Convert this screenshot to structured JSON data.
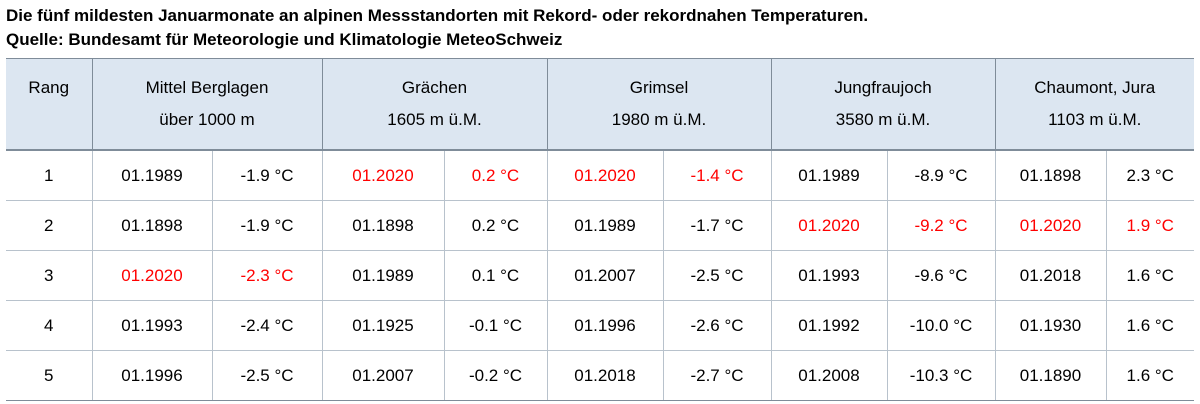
{
  "title": "Die fünf mildesten Januarmonate an alpinen Messstandorten mit Rekord- oder rekordnahen Temperaturen.",
  "source": "Quelle: Bundesamt für Meteorologie und Klimatologie MeteoSchweiz",
  "header": {
    "rank": "Rang",
    "stations": [
      {
        "name": "Mittel Berglagen",
        "altitude": "über 1000 m"
      },
      {
        "name": "Grächen",
        "altitude": "1605 m ü.M."
      },
      {
        "name": "Grimsel",
        "altitude": "1980 m ü.M."
      },
      {
        "name": "Jungfraujoch",
        "altitude": "3580 m ü.M."
      },
      {
        "name": "Chaumont, Jura",
        "altitude": "1103 m ü.M."
      }
    ]
  },
  "highlight_color": "#ff0000",
  "rows": [
    {
      "rank": "1",
      "cells": [
        {
          "date": "01.1989",
          "temp": "-1.9 °C",
          "hl": false
        },
        {
          "date": "01.2020",
          "temp": "0.2 °C",
          "hl": true
        },
        {
          "date": "01.2020",
          "temp": "-1.4 °C",
          "hl": true
        },
        {
          "date": "01.1989",
          "temp": "-8.9 °C",
          "hl": false
        },
        {
          "date": "01.1898",
          "temp": "2.3 °C",
          "hl": false
        }
      ]
    },
    {
      "rank": "2",
      "cells": [
        {
          "date": "01.1898",
          "temp": "-1.9 °C",
          "hl": false
        },
        {
          "date": "01.1898",
          "temp": "0.2 °C",
          "hl": false
        },
        {
          "date": "01.1989",
          "temp": "-1.7 °C",
          "hl": false
        },
        {
          "date": "01.2020",
          "temp": "-9.2 °C",
          "hl": true
        },
        {
          "date": "01.2020",
          "temp": "1.9 °C",
          "hl": true
        }
      ]
    },
    {
      "rank": "3",
      "cells": [
        {
          "date": "01.2020",
          "temp": "-2.3  °C",
          "hl": true
        },
        {
          "date": "01.1989",
          "temp": "0.1 °C",
          "hl": false
        },
        {
          "date": "01.2007",
          "temp": "-2.5 °C",
          "hl": false
        },
        {
          "date": "01.1993",
          "temp": "-9.6 °C",
          "hl": false
        },
        {
          "date": "01.2018",
          "temp": "1.6 °C",
          "hl": false
        }
      ]
    },
    {
      "rank": "4",
      "cells": [
        {
          "date": "01.1993",
          "temp": "-2.4 °C",
          "hl": false
        },
        {
          "date": "01.1925",
          "temp": "-0.1 °C",
          "hl": false
        },
        {
          "date": "01.1996",
          "temp": "-2.6 °C",
          "hl": false
        },
        {
          "date": "01.1992",
          "temp": "-10.0 °C",
          "hl": false
        },
        {
          "date": "01.1930",
          "temp": "1.6 °C",
          "hl": false
        }
      ]
    },
    {
      "rank": "5",
      "cells": [
        {
          "date": "01.1996",
          "temp": "-2.5 °C",
          "hl": false
        },
        {
          "date": "01.2007",
          "temp": "-0.2 °C",
          "hl": false
        },
        {
          "date": "01.2018",
          "temp": "-2.7 °C",
          "hl": false
        },
        {
          "date": "01.2008",
          "temp": "-10.3 °C",
          "hl": false
        },
        {
          "date": "01.1890",
          "temp": "1.6 °C",
          "hl": false
        }
      ]
    }
  ]
}
